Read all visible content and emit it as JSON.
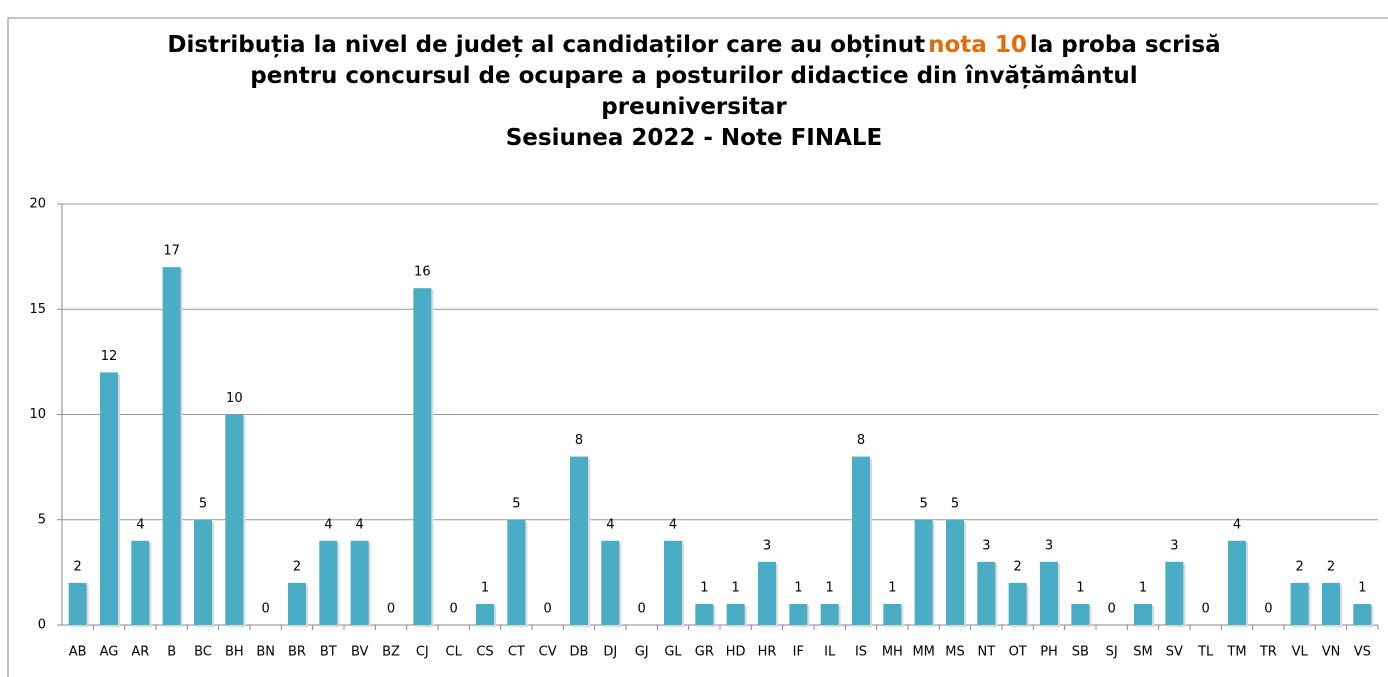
{
  "chart_data": {
    "type": "bar",
    "title": [
      "Distribuția la nivel de județ al candidaților care au obținut",
      "nota 10",
      "la proba scrisă",
      "pentru concursul de ocupare a posturilor didactice din învățământul",
      "preuniversitar"
    ],
    "subtitle": "Sesiunea 2022 - Note FINALE",
    "highlight_color": "#e36c0a",
    "categories": [
      "AB",
      "AG",
      "AR",
      "B",
      "BC",
      "BH",
      "BN",
      "BR",
      "BT",
      "BV",
      "BZ",
      "CJ",
      "CL",
      "CS",
      "CT",
      "CV",
      "DB",
      "DJ",
      "GJ",
      "GL",
      "GR",
      "HD",
      "HR",
      "IF",
      "IL",
      "IS",
      "MH",
      "MM",
      "MS",
      "NT",
      "OT",
      "PH",
      "SB",
      "SJ",
      "SM",
      "SV",
      "TL",
      "TM",
      "TR",
      "VL",
      "VN",
      "VS"
    ],
    "values": [
      2,
      12,
      4,
      17,
      5,
      10,
      0,
      2,
      4,
      4,
      0,
      16,
      0,
      1,
      5,
      0,
      8,
      4,
      0,
      4,
      1,
      1,
      3,
      1,
      1,
      8,
      1,
      5,
      5,
      3,
      2,
      3,
      1,
      0,
      1,
      3,
      0,
      4,
      0,
      2,
      2,
      1
    ],
    "color": "#4bacc6",
    "ylim": [
      0,
      20
    ],
    "yticks": [
      0,
      5,
      10,
      15,
      20
    ],
    "grid": true
  }
}
